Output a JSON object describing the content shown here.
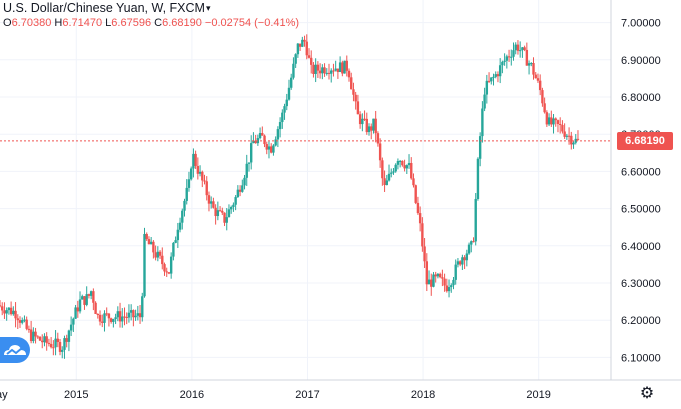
{
  "header": {
    "title": "U.S. Dollar/Chinese Yuan, W, FXCM",
    "open_label": "O",
    "open": "6.70380",
    "high_label": "H",
    "high": "6.71470",
    "low_label": "L",
    "low": "6.67596",
    "close_label": "C",
    "close": "6.68190",
    "change": "−0.02754 (−0.41%)"
  },
  "colors": {
    "up": "#26a69a",
    "down": "#ef5350",
    "grid": "#f0f3fa",
    "axis": "#d1d4dc",
    "logo": "#3a8ef0"
  },
  "icons": {
    "logo": "tradingview-logo-icon",
    "settings": "gear-icon"
  },
  "chart_data": {
    "type": "candlestick",
    "title": "U.S. Dollar/Chinese Yuan, W, FXCM",
    "last_price": "6.68190",
    "ylim": [
      6.05,
      7.05
    ],
    "y_ticks": [
      6.1,
      6.2,
      6.3,
      6.4,
      6.5,
      6.6,
      6.7,
      6.8,
      6.9,
      7.0
    ],
    "y_tick_labels": [
      "6.10000",
      "6.20000",
      "6.30000",
      "6.40000",
      "6.50000",
      "6.60000",
      "6.70000",
      "6.80000",
      "6.90000",
      "7.00000"
    ],
    "x_ticks": [
      {
        "label": "2015",
        "t": 2015.0
      },
      {
        "label": "2016",
        "t": 2016.0
      },
      {
        "label": "2017",
        "t": 2017.0
      },
      {
        "label": "2018",
        "t": 2018.0
      },
      {
        "label": "2019",
        "t": 2019.0
      }
    ],
    "x_edge_label": {
      "label": "ay",
      "t": 2014.37
    },
    "xlim": [
      2014.34,
      2019.47
    ],
    "grid": true,
    "legend": "none",
    "anchors": [
      [
        2014.34,
        6.24
      ],
      [
        2014.5,
        6.22
      ],
      [
        2014.62,
        6.16
      ],
      [
        2014.75,
        6.14
      ],
      [
        2014.9,
        6.13
      ],
      [
        2015.05,
        6.25
      ],
      [
        2015.12,
        6.26
      ],
      [
        2015.15,
        6.28
      ],
      [
        2015.2,
        6.21
      ],
      [
        2015.58,
        6.21
      ],
      [
        2015.61,
        6.42
      ],
      [
        2015.7,
        6.38
      ],
      [
        2015.82,
        6.33
      ],
      [
        2015.9,
        6.46
      ],
      [
        2016.0,
        6.57
      ],
      [
        2016.02,
        6.65
      ],
      [
        2016.1,
        6.58
      ],
      [
        2016.2,
        6.5
      ],
      [
        2016.3,
        6.47
      ],
      [
        2016.4,
        6.53
      ],
      [
        2016.5,
        6.62
      ],
      [
        2016.55,
        6.68
      ],
      [
        2016.63,
        6.69
      ],
      [
        2016.7,
        6.66
      ],
      [
        2016.8,
        6.75
      ],
      [
        2016.87,
        6.84
      ],
      [
        2016.94,
        6.94
      ],
      [
        2017.0,
        6.95
      ],
      [
        2017.05,
        6.87
      ],
      [
        2017.2,
        6.88
      ],
      [
        2017.37,
        6.88
      ],
      [
        2017.45,
        6.75
      ],
      [
        2017.55,
        6.71
      ],
      [
        2017.6,
        6.73
      ],
      [
        2017.68,
        6.55
      ],
      [
        2017.72,
        6.58
      ],
      [
        2017.8,
        6.64
      ],
      [
        2017.9,
        6.61
      ],
      [
        2018.0,
        6.44
      ],
      [
        2018.05,
        6.3
      ],
      [
        2018.15,
        6.31
      ],
      [
        2018.22,
        6.29
      ],
      [
        2018.28,
        6.32
      ],
      [
        2018.35,
        6.37
      ],
      [
        2018.45,
        6.4
      ],
      [
        2018.5,
        6.65
      ],
      [
        2018.55,
        6.82
      ],
      [
        2018.65,
        6.86
      ],
      [
        2018.75,
        6.91
      ],
      [
        2018.83,
        6.94
      ],
      [
        2018.92,
        6.9
      ],
      [
        2018.96,
        6.88
      ],
      [
        2019.03,
        6.82
      ],
      [
        2019.1,
        6.73
      ],
      [
        2019.2,
        6.72
      ],
      [
        2019.3,
        6.69
      ],
      [
        2019.35,
        6.68
      ]
    ],
    "interval": "W",
    "source": "FXCM"
  }
}
